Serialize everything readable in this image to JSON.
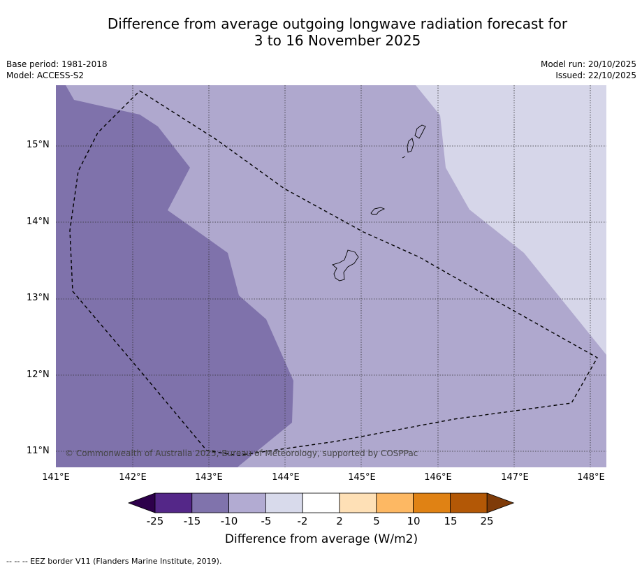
{
  "title": {
    "line1": "Difference from average outgoing longwave radiation forecast for",
    "line2": "3 to 16 November 2025"
  },
  "meta": {
    "base_period": "Base period: 1981-2018",
    "model": "Model: ACCESS-S2",
    "model_run": "Model run: 20/10/2025",
    "issued": "Issued: 22/10/2025"
  },
  "map": {
    "lat_labels": [
      "15°N",
      "14°N",
      "13°N",
      "12°N",
      "11°N"
    ],
    "lon_labels": [
      "141°E",
      "142°E",
      "143°E",
      "144°E",
      "145°E",
      "146°E",
      "147°E",
      "148°E"
    ],
    "copyright": "© Commonwealth of Australia 2025, Bureau of Meteorology, supported by COSPPac",
    "colors": {
      "band_-15_-10": "#7f72ab",
      "band_-10_-5": "#afa8ce",
      "band_-5_-2": "#d6d6e9",
      "coast": "#000000",
      "eez": "#000000"
    }
  },
  "colorbar": {
    "title": "Difference from average (W/m2)",
    "ticks": [
      "-25",
      "-15",
      "-10",
      "-5",
      "-2",
      "2",
      "5",
      "10",
      "15",
      "25"
    ],
    "colors": [
      "#2d004b",
      "#542788",
      "#8073ac",
      "#b2abd2",
      "#d8daeb",
      "#ffffff",
      "#fee0b6",
      "#fdb863",
      "#e08214",
      "#b35806",
      "#7f3b08"
    ]
  },
  "footer": {
    "eez_note": "--  --  -- EEZ border V11 (Flanders Marine Institute, 2019)."
  }
}
